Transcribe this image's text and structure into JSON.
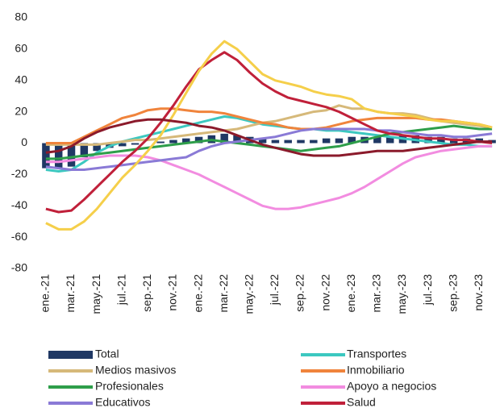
{
  "chart_data": {
    "type": "line",
    "categories": [
      "ene.-21",
      null,
      "mar.-21",
      null,
      "may.-21",
      null,
      "jul.-21",
      null,
      "sep.-21",
      null,
      "nov.-21",
      null,
      "ene.-22",
      null,
      "mar.-22",
      null,
      "may.-22",
      null,
      "jul.-22",
      null,
      "sep.-22",
      null,
      "nov.-22",
      null,
      "ene.-23",
      null,
      "mar.-23",
      null,
      "may.-23",
      null,
      "jul.-23",
      null,
      "sep.-23",
      null,
      "nov.-23",
      null
    ],
    "ylim": [
      -80,
      80
    ],
    "yticks": [
      -80,
      -60,
      -40,
      -20,
      0,
      20,
      40,
      60,
      80
    ],
    "series": [
      {
        "name": "Total",
        "type": "bar",
        "color": "#1f3864",
        "values": [
          -16,
          -16,
          -15,
          -9,
          -5,
          -3,
          -2,
          -1,
          0,
          1,
          2,
          3,
          4,
          5,
          6,
          5,
          4,
          3,
          2,
          2,
          2,
          2,
          3,
          3,
          4,
          4,
          4,
          4,
          5,
          5,
          4,
          4,
          3,
          3,
          3,
          2
        ]
      },
      {
        "name": "Transportes",
        "color": "#3cc8c0",
        "values": [
          -17,
          -18,
          -17,
          -12,
          -6,
          -2,
          1,
          3,
          5,
          7,
          9,
          11,
          13,
          15,
          17,
          16,
          14,
          12,
          11,
          10,
          9,
          9,
          8,
          8,
          7,
          6,
          5,
          4,
          3,
          2,
          1,
          0,
          -1,
          -1,
          -2,
          -2
        ]
      },
      {
        "name": "Medios masivos",
        "color": "#d6b97a",
        "values": [
          -1,
          -1,
          -1,
          -1,
          -1,
          0,
          1,
          2,
          2,
          3,
          4,
          5,
          6,
          7,
          8,
          9,
          11,
          13,
          14,
          16,
          18,
          20,
          21,
          24,
          22,
          22,
          20,
          19,
          19,
          18,
          16,
          14,
          13,
          12,
          11,
          10
        ]
      },
      {
        "name": "Inmobiliario",
        "color": "#f0843c",
        "values": [
          0,
          0,
          0,
          4,
          8,
          12,
          16,
          18,
          21,
          22,
          22,
          21,
          20,
          20,
          19,
          17,
          15,
          13,
          12,
          10,
          9,
          9,
          10,
          12,
          14,
          15,
          16,
          16,
          16,
          16,
          15,
          15,
          14,
          13,
          12,
          10
        ]
      },
      {
        "name": "Profesionales",
        "color": "#2e9e4a",
        "values": [
          -10,
          -10,
          -9,
          -8,
          -7,
          -6,
          -5,
          -4,
          -3,
          -2,
          -1,
          0,
          1,
          2,
          1,
          0,
          -1,
          -2,
          -3,
          -4,
          -5,
          -4,
          -3,
          -2,
          0,
          2,
          4,
          6,
          7,
          8,
          9,
          10,
          11,
          10,
          9,
          9
        ]
      },
      {
        "name": "Apoyo a negocios",
        "color": "#f28ce0",
        "values": [
          -12,
          -12,
          -11,
          -10,
          -9,
          -8,
          -8,
          -8,
          -9,
          -11,
          -14,
          -17,
          -20,
          -24,
          -28,
          -32,
          -36,
          -40,
          -42,
          -42,
          -41,
          -39,
          -37,
          -35,
          -32,
          -28,
          -23,
          -18,
          -13,
          -9,
          -7,
          -5,
          -4,
          -3,
          -2,
          -2
        ]
      },
      {
        "name": "Educativos",
        "color": "#8a7ad6",
        "values": [
          -15,
          -16,
          -17,
          -17,
          -16,
          -15,
          -14,
          -13,
          -12,
          -11,
          -10,
          -9,
          -5,
          -2,
          0,
          1,
          2,
          3,
          4,
          6,
          8,
          9,
          9,
          9,
          9,
          9,
          8,
          8,
          7,
          6,
          5,
          5,
          4,
          4,
          5,
          6
        ]
      },
      {
        "name": "Salud",
        "color": "#c0203a",
        "values": [
          -42,
          -44,
          -43,
          -36,
          -28,
          -20,
          -12,
          -5,
          3,
          13,
          24,
          36,
          47,
          53,
          58,
          53,
          45,
          38,
          33,
          29,
          27,
          25,
          23,
          20,
          16,
          12,
          8,
          6,
          5,
          4,
          3,
          3,
          2,
          2,
          1,
          0
        ]
      },
      {
        "color": "#f5cf4a",
        "values": [
          -51,
          -55,
          -55,
          -50,
          -42,
          -32,
          -22,
          -14,
          -5,
          5,
          18,
          32,
          46,
          57,
          65,
          60,
          52,
          44,
          40,
          38,
          36,
          33,
          31,
          30,
          28,
          22,
          20,
          19,
          18,
          17,
          15,
          14,
          14,
          13,
          12,
          10
        ]
      },
      {
        "color": "#8b1a2b",
        "values": [
          -6,
          -5,
          -2,
          3,
          7,
          10,
          12,
          14,
          15,
          15,
          14,
          13,
          11,
          10,
          8,
          5,
          2,
          -1,
          -3,
          -5,
          -7,
          -8,
          -8,
          -8,
          -7,
          -6,
          -5,
          -5,
          -5,
          -4,
          -3,
          -2,
          -1,
          0,
          1,
          1
        ]
      }
    ]
  }
}
